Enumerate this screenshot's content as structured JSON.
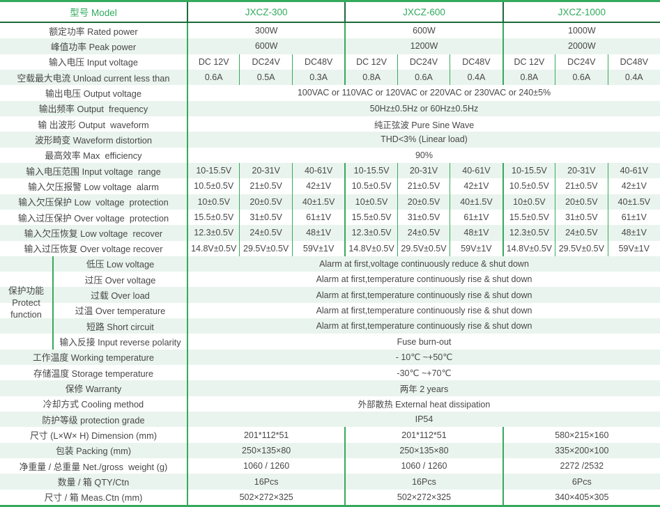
{
  "colors": {
    "accent_green": "#36a95c",
    "header_divider": "#1b6b38",
    "row_stripe": "#eaf4ee",
    "body_text": "#474747",
    "model_text_green": "#2fab5c"
  },
  "header": {
    "label": "型号 Model",
    "models": [
      "JXCZ-300",
      "JXCZ-600",
      "JXCZ-1000"
    ]
  },
  "protect_group": {
    "label": "保护功能\nProtect\nfunction"
  },
  "rows": [
    {
      "kind": "per_model",
      "label": "额定功率 Rated power",
      "values": [
        "300W",
        "600W",
        "1000W"
      ]
    },
    {
      "kind": "per_model",
      "label": "峰值功率 Peak power",
      "values": [
        "600W",
        "1200W",
        "2000W"
      ]
    },
    {
      "kind": "per_sub",
      "label": "输入电压 Input voltage",
      "values": [
        [
          "DC 12V",
          "DC24V",
          "DC48V"
        ],
        [
          "DC 12V",
          "DC24V",
          "DC48V"
        ],
        [
          "DC 12V",
          "DC24V",
          "DC48V"
        ]
      ]
    },
    {
      "kind": "per_sub",
      "label": "空载最大电流 Unload current less than",
      "values": [
        [
          "0.6A",
          "0.5A",
          "0.3A"
        ],
        [
          "0.8A",
          "0.6A",
          "0.4A"
        ],
        [
          "0.8A",
          "0.6A",
          "0.4A"
        ]
      ]
    },
    {
      "kind": "span",
      "label": "输出电压 Output voltage",
      "value": "100VAC or 110VAC or 120VAC or 220VAC or 230VAC or 240±5%"
    },
    {
      "kind": "span",
      "label": "输出频率 Output  frequency",
      "value": "50Hz±0.5Hz or 60Hz±0.5Hz"
    },
    {
      "kind": "span",
      "label": "输 出波形 Output  waveform",
      "value": "纯正弦波 Pure Sine Wave"
    },
    {
      "kind": "span",
      "label": "波形畸变 Waveform distortion",
      "value": "THD<3% (Linear load)"
    },
    {
      "kind": "span",
      "label": "最高效率 Max  efficiency",
      "value": "90%"
    },
    {
      "kind": "per_sub",
      "label": "输入电压范围 Input voltage  range",
      "values": [
        [
          "10-15.5V",
          "20-31V",
          "40-61V"
        ],
        [
          "10-15.5V",
          "20-31V",
          "40-61V"
        ],
        [
          "10-15.5V",
          "20-31V",
          "40-61V"
        ]
      ]
    },
    {
      "kind": "per_sub",
      "label": "输入欠压报警 Low voltage  alarm",
      "values": [
        [
          "10.5±0.5V",
          "21±0.5V",
          "42±1V"
        ],
        [
          "10.5±0.5V",
          "21±0.5V",
          "42±1V"
        ],
        [
          "10.5±0.5V",
          "21±0.5V",
          "42±1V"
        ]
      ]
    },
    {
      "kind": "per_sub",
      "label": "输入欠压保护 Low  voltage  protection",
      "values": [
        [
          "10±0.5V",
          "20±0.5V",
          "40±1.5V"
        ],
        [
          "10±0.5V",
          "20±0.5V",
          "40±1.5V"
        ],
        [
          "10±0.5V",
          "20±0.5V",
          "40±1.5V"
        ]
      ]
    },
    {
      "kind": "per_sub",
      "label": "输入过压保护 Over voltage  protection",
      "values": [
        [
          "15.5±0.5V",
          "31±0.5V",
          "61±1V"
        ],
        [
          "15.5±0.5V",
          "31±0.5V",
          "61±1V"
        ],
        [
          "15.5±0.5V",
          "31±0.5V",
          "61±1V"
        ]
      ]
    },
    {
      "kind": "per_sub",
      "label": "输入欠压恢复 Low voltage  recover",
      "values": [
        [
          "12.3±0.5V",
          "24±0.5V",
          "48±1V"
        ],
        [
          "12.3±0.5V",
          "24±0.5V",
          "48±1V"
        ],
        [
          "12.3±0.5V",
          "24±0.5V",
          "48±1V"
        ]
      ]
    },
    {
      "kind": "per_sub",
      "label": "输入过压恢复 Over voltage recover",
      "values": [
        [
          "14.8V±0.5V",
          "29.5V±0.5V",
          "59V±1V"
        ],
        [
          "14.8V±0.5V",
          "29.5V±0.5V",
          "59V±1V"
        ],
        [
          "14.8V±0.5V",
          "29.5V±0.5V",
          "59V±1V"
        ]
      ]
    },
    {
      "kind": "group_first",
      "label": "低压 Low voltage",
      "value": "Alarm at first,voltage continuously reduce & shut down",
      "group_label": "保护功能\nProtect\nfunction"
    },
    {
      "kind": "group",
      "label": "过压 Over voltage",
      "value": "Alarm at first,temperature continuously rise & shut down"
    },
    {
      "kind": "group",
      "label": "过载 Over load",
      "value": "Alarm at first,temperature continuously rise & shut down"
    },
    {
      "kind": "group",
      "label": "过温 Over temperature",
      "value": "Alarm at first,temperature continuously rise & shut down"
    },
    {
      "kind": "group",
      "label": "短路 Short circuit",
      "value": "Alarm at first,temperature continuously rise & shut down"
    },
    {
      "kind": "group",
      "label": "输入反接 Input reverse polarity",
      "value": "Fuse burn-out"
    },
    {
      "kind": "span",
      "label": "工作温度 Working temperature",
      "value": "- 10℃ ~+50℃"
    },
    {
      "kind": "span",
      "label": "存储温度 Storage temperature",
      "value": "-30℃ ~+70℃"
    },
    {
      "kind": "span",
      "label": "保修 Warranty",
      "value": "两年 2 years"
    },
    {
      "kind": "span",
      "label": "冷却方式 Cooling method",
      "value": "外部散热 External heat dissipation"
    },
    {
      "kind": "span",
      "label": "防护等级 protection grade",
      "value": "IP54"
    },
    {
      "kind": "per_model",
      "label": "尺寸 (L×W× H) Dimension (mm)",
      "values": [
        "201*112*51",
        "201*112*51",
        "580×215×160"
      ]
    },
    {
      "kind": "per_model",
      "label": "包装 Packing (mm)",
      "values": [
        "250×135×80",
        "250×135×80",
        "335×200×100"
      ]
    },
    {
      "kind": "per_model",
      "label": "净重量 / 总重量 Net./gross  weight (g)",
      "values": [
        "1060 / 1260",
        "1060 / 1260",
        "2272 /2532"
      ]
    },
    {
      "kind": "per_model",
      "label": "数量 / 箱 QTY/Ctn",
      "values": [
        "16Pcs",
        "16Pcs",
        "6Pcs"
      ]
    },
    {
      "kind": "per_model",
      "label": "尺寸 / 箱 Meas.Ctn (mm)",
      "values": [
        "502×272×325",
        "502×272×325",
        "340×405×305"
      ]
    }
  ]
}
